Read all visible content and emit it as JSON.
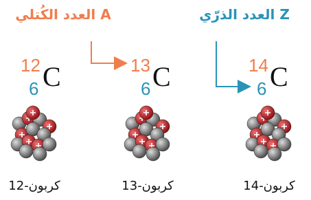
{
  "labels": {
    "mass_number": "العدد الكُتلي A",
    "atomic_number": "العدد الذرّي Z"
  },
  "isotopes": [
    {
      "mass": 12,
      "atomic": 6,
      "symbol": "C",
      "name": "كربون-12"
    },
    {
      "mass": 13,
      "atomic": 6,
      "symbol": "C",
      "name": "كربون-13"
    },
    {
      "mass": 14,
      "atomic": 6,
      "symbol": "C",
      "name": "كربون-14"
    }
  ]
}
